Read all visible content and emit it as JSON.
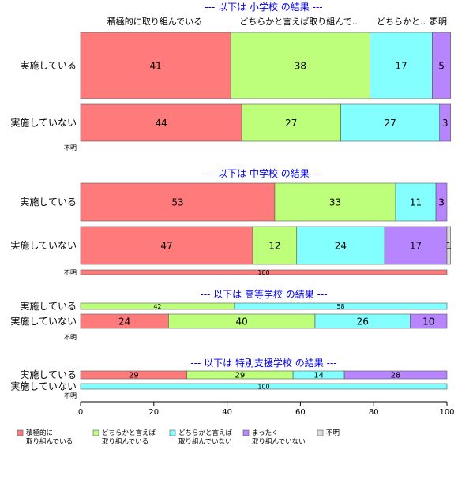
{
  "chart_data": {
    "type": "bar",
    "orientation": "horizontal",
    "stacked": true,
    "xlim": [
      0,
      100
    ],
    "x_ticks": [
      "0",
      "20",
      "40",
      "60",
      "80",
      "100"
    ],
    "grid": false,
    "legend_placement": "bottom",
    "colors": {
      "積極的に取り組んでいる": "#ff7b7b",
      "どちらかと言えば取り組んでいる": "#bdff7b",
      "どちらかと言えば取り組んでいない": "#83ffff",
      "まったく取り組んでいない": "#b785ff",
      "不明": "#dcdcdc",
      "section_title": "#0000ee"
    },
    "top_category_labels": [
      "積極的に取り組んでいる",
      "どちらかと言えば取り組んで..",
      "どちらかと..",
      "ま..",
      "不明"
    ],
    "legend": [
      {
        "key": "積極的に取り組んでいる",
        "lines": [
          "積極的に",
          "取り組んでいる"
        ]
      },
      {
        "key": "どちらかと言えば取り組んでいる",
        "lines": [
          "どちらかと言えば",
          "取り組んでいる"
        ]
      },
      {
        "key": "どちらかと言えば取り組んでいない",
        "lines": [
          "どちらかと言えば",
          "取り組んでいない"
        ]
      },
      {
        "key": "まったく取り組んでいない",
        "lines": [
          "まったく",
          "取り組んでいない"
        ]
      },
      {
        "key": "不明",
        "lines": [
          "不明"
        ]
      }
    ],
    "groups": [
      {
        "title": "--- 以下は 小学校 の結果 ---",
        "rows": [
          {
            "label": "実施している",
            "values": [
              41,
              38,
              17,
              5,
              0
            ]
          },
          {
            "label": "実施していない",
            "values": [
              44,
              27,
              27,
              3,
              0
            ]
          },
          {
            "label": "不明",
            "values": [
              0,
              0,
              0,
              0,
              0
            ]
          }
        ]
      },
      {
        "title": "--- 以下は 中学校 の結果 ---",
        "rows": [
          {
            "label": "実施している",
            "values": [
              53,
              33,
              11,
              3,
              0
            ]
          },
          {
            "label": "実施していない",
            "values": [
              47,
              12,
              24,
              17,
              1
            ]
          },
          {
            "label": "不明",
            "values": [
              100,
              0,
              0,
              0,
              0
            ]
          }
        ]
      },
      {
        "title": "--- 以下は 高等学校 の結果 ---",
        "rows": [
          {
            "label": "実施している",
            "values": [
              0,
              42,
              58,
              0,
              0
            ]
          },
          {
            "label": "実施していない",
            "values": [
              24,
              40,
              26,
              10,
              0
            ]
          },
          {
            "label": "不明",
            "values": [
              0,
              0,
              0,
              0,
              0
            ]
          }
        ]
      },
      {
        "title": "--- 以下は 特別支援学校 の結果 ---",
        "rows": [
          {
            "label": "実施している",
            "values": [
              29,
              29,
              14,
              28,
              0
            ]
          },
          {
            "label": "実施していない",
            "values": [
              0,
              0,
              100,
              0,
              0
            ]
          },
          {
            "label": "不明",
            "values": [
              0,
              0,
              0,
              0,
              0
            ]
          }
        ]
      }
    ]
  }
}
